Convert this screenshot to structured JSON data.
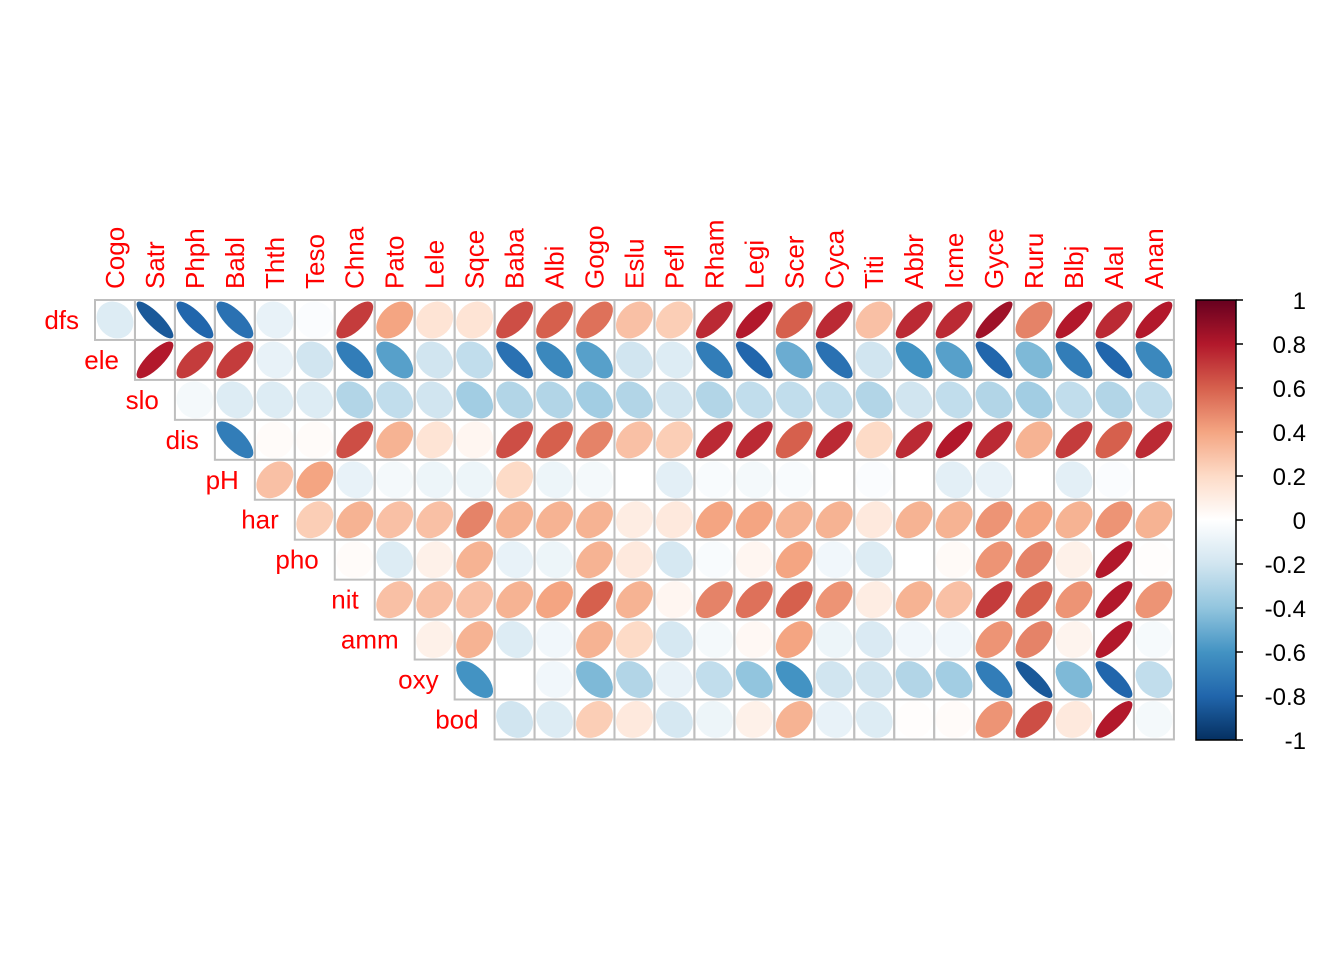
{
  "chart_data": {
    "type": "heatmap",
    "subtype": "correlation-ellipse-upper-triangle",
    "title": "",
    "columns": [
      "Cogo",
      "Satr",
      "Phph",
      "Babl",
      "Thth",
      "Teso",
      "Chna",
      "Pato",
      "Lele",
      "Sqce",
      "Baba",
      "Albi",
      "Gogo",
      "Eslu",
      "Pefl",
      "Rham",
      "Legi",
      "Scer",
      "Cyca",
      "Titi",
      "Abbr",
      "Icme",
      "Gyce",
      "Ruru",
      "Blbj",
      "Alal",
      "Anan"
    ],
    "rows": [
      {
        "label": "dfs",
        "start_col": 0,
        "values": [
          -0.15,
          -0.85,
          -0.8,
          -0.75,
          -0.1,
          -0.02,
          0.7,
          0.4,
          0.15,
          0.15,
          0.65,
          0.6,
          0.55,
          0.3,
          0.25,
          0.75,
          0.8,
          0.6,
          0.75,
          0.3,
          0.75,
          0.75,
          0.85,
          0.5,
          0.8,
          0.75,
          0.8
        ]
      },
      {
        "label": "ele",
        "start_col": 1,
        "values": [
          0.8,
          0.7,
          0.7,
          -0.1,
          -0.2,
          -0.7,
          -0.55,
          -0.2,
          -0.25,
          -0.75,
          -0.65,
          -0.55,
          -0.2,
          -0.15,
          -0.7,
          -0.8,
          -0.5,
          -0.75,
          -0.2,
          -0.6,
          -0.55,
          -0.8,
          -0.45,
          -0.7,
          -0.8,
          -0.65
        ]
      },
      {
        "label": "slo",
        "start_col": 2,
        "values": [
          -0.05,
          -0.15,
          -0.15,
          -0.15,
          -0.3,
          -0.25,
          -0.2,
          -0.35,
          -0.3,
          -0.3,
          -0.35,
          -0.3,
          -0.2,
          -0.3,
          -0.25,
          -0.25,
          -0.25,
          -0.3,
          -0.2,
          -0.25,
          -0.3,
          -0.35,
          -0.25,
          -0.3,
          -0.25
        ]
      },
      {
        "label": "dis",
        "start_col": 3,
        "values": [
          -0.7,
          0.02,
          0.02,
          0.65,
          0.35,
          0.15,
          0.05,
          0.65,
          0.6,
          0.5,
          0.3,
          0.25,
          0.75,
          0.75,
          0.6,
          0.75,
          0.2,
          0.75,
          0.8,
          0.75,
          0.35,
          0.7,
          0.6,
          0.75
        ]
      },
      {
        "label": "pH",
        "start_col": 4,
        "values": [
          0.3,
          0.4,
          -0.1,
          -0.05,
          -0.08,
          -0.08,
          0.2,
          -0.08,
          -0.05,
          0,
          -0.12,
          -0.03,
          -0.05,
          -0.03,
          0,
          -0.02,
          0,
          -0.12,
          -0.1,
          0,
          -0.12,
          -0.02
        ]
      },
      {
        "label": "har",
        "start_col": 5,
        "values": [
          0.25,
          0.35,
          0.3,
          0.3,
          0.5,
          0.35,
          0.35,
          0.35,
          0.1,
          0.12,
          0.4,
          0.4,
          0.35,
          0.35,
          0.12,
          0.35,
          0.35,
          0.45,
          0.4,
          0.35,
          0.45,
          0.35
        ]
      },
      {
        "label": "pho",
        "start_col": 6,
        "values": [
          0.02,
          -0.15,
          0.08,
          0.35,
          -0.1,
          -0.08,
          0.35,
          0.12,
          -0.18,
          -0.03,
          0.05,
          0.4,
          -0.06,
          -0.15,
          0,
          0.03,
          0.45,
          0.5,
          0.08,
          0.8,
          0.01
        ]
      },
      {
        "label": "nit",
        "start_col": 7,
        "values": [
          0.3,
          0.3,
          0.3,
          0.35,
          0.4,
          0.6,
          0.35,
          0.05,
          0.5,
          0.55,
          0.6,
          0.45,
          0.1,
          0.35,
          0.3,
          0.7,
          0.6,
          0.45,
          0.8,
          0.45
        ]
      },
      {
        "label": "amm",
        "start_col": 8,
        "values": [
          0.08,
          0.35,
          -0.15,
          -0.06,
          0.35,
          0.2,
          -0.18,
          -0.05,
          0.04,
          0.4,
          -0.08,
          -0.16,
          -0.06,
          -0.06,
          0.45,
          0.5,
          0.06,
          0.8,
          -0.04
        ]
      },
      {
        "label": "oxy",
        "start_col": 9,
        "values": [
          -0.6,
          0,
          -0.06,
          -0.45,
          -0.3,
          -0.1,
          -0.25,
          -0.4,
          -0.6,
          -0.2,
          -0.2,
          -0.3,
          -0.35,
          -0.7,
          -0.85,
          -0.45,
          -0.8,
          -0.25
        ]
      },
      {
        "label": "bod",
        "start_col": 10,
        "values": [
          -0.2,
          -0.15,
          0.25,
          0.12,
          -0.18,
          -0.08,
          0.08,
          0.35,
          -0.1,
          -0.15,
          0.01,
          0.02,
          0.45,
          0.65,
          0.12,
          0.8,
          -0.05
        ]
      }
    ],
    "colorbar": {
      "ticks": [
        "1",
        "0.8",
        "0.6",
        "0.4",
        "0.2",
        "0",
        "-0.2",
        "-0.4",
        "-0.6",
        "-0.8",
        "-1"
      ],
      "range": [
        -1,
        1
      ],
      "colors": [
        "#67001F",
        "#B2182B",
        "#D6604D",
        "#F4A582",
        "#FDDBC7",
        "#FFFFFF",
        "#D1E5F0",
        "#92C5DE",
        "#4393C3",
        "#2166AC",
        "#053061"
      ]
    },
    "label_color": "#FF0000",
    "grid_color": "#BEBEBE"
  }
}
